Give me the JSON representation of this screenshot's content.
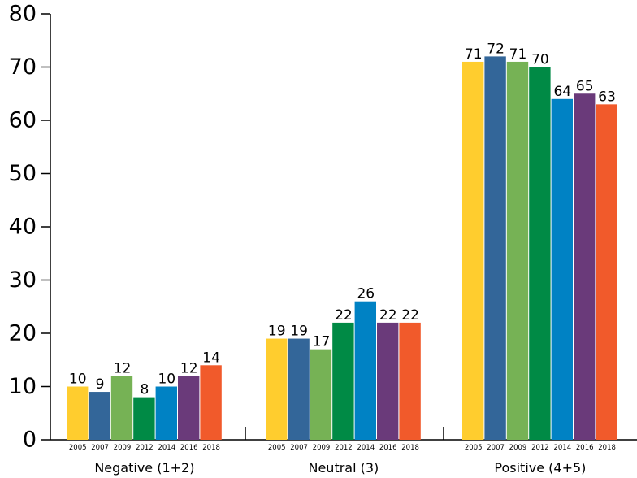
{
  "chart_data": {
    "type": "bar",
    "categories": [
      "Negative (1+2)",
      "Neutral (3)",
      "Positive (4+5)"
    ],
    "series": [
      {
        "name": "2005",
        "color": "#FFCD2E",
        "values": [
          10,
          19,
          71
        ]
      },
      {
        "name": "2007",
        "color": "#336699",
        "values": [
          9,
          19,
          72
        ]
      },
      {
        "name": "2009",
        "color": "#76B255",
        "values": [
          12,
          17,
          71
        ]
      },
      {
        "name": "2012",
        "color": "#008A45",
        "values": [
          8,
          22,
          70
        ]
      },
      {
        "name": "2014",
        "color": "#0082C4",
        "values": [
          10,
          26,
          64
        ]
      },
      {
        "name": "2016",
        "color": "#6A3A7A",
        "values": [
          12,
          22,
          65
        ]
      },
      {
        "name": "2018",
        "color": "#F15A2B",
        "values": [
          14,
          22,
          63
        ]
      }
    ],
    "ylim": [
      0,
      80
    ],
    "yticks": [
      0,
      10,
      20,
      30,
      40,
      50,
      60,
      70,
      80
    ],
    "xlabel": "",
    "ylabel": "",
    "title": "",
    "grid": false,
    "legend": "none"
  }
}
